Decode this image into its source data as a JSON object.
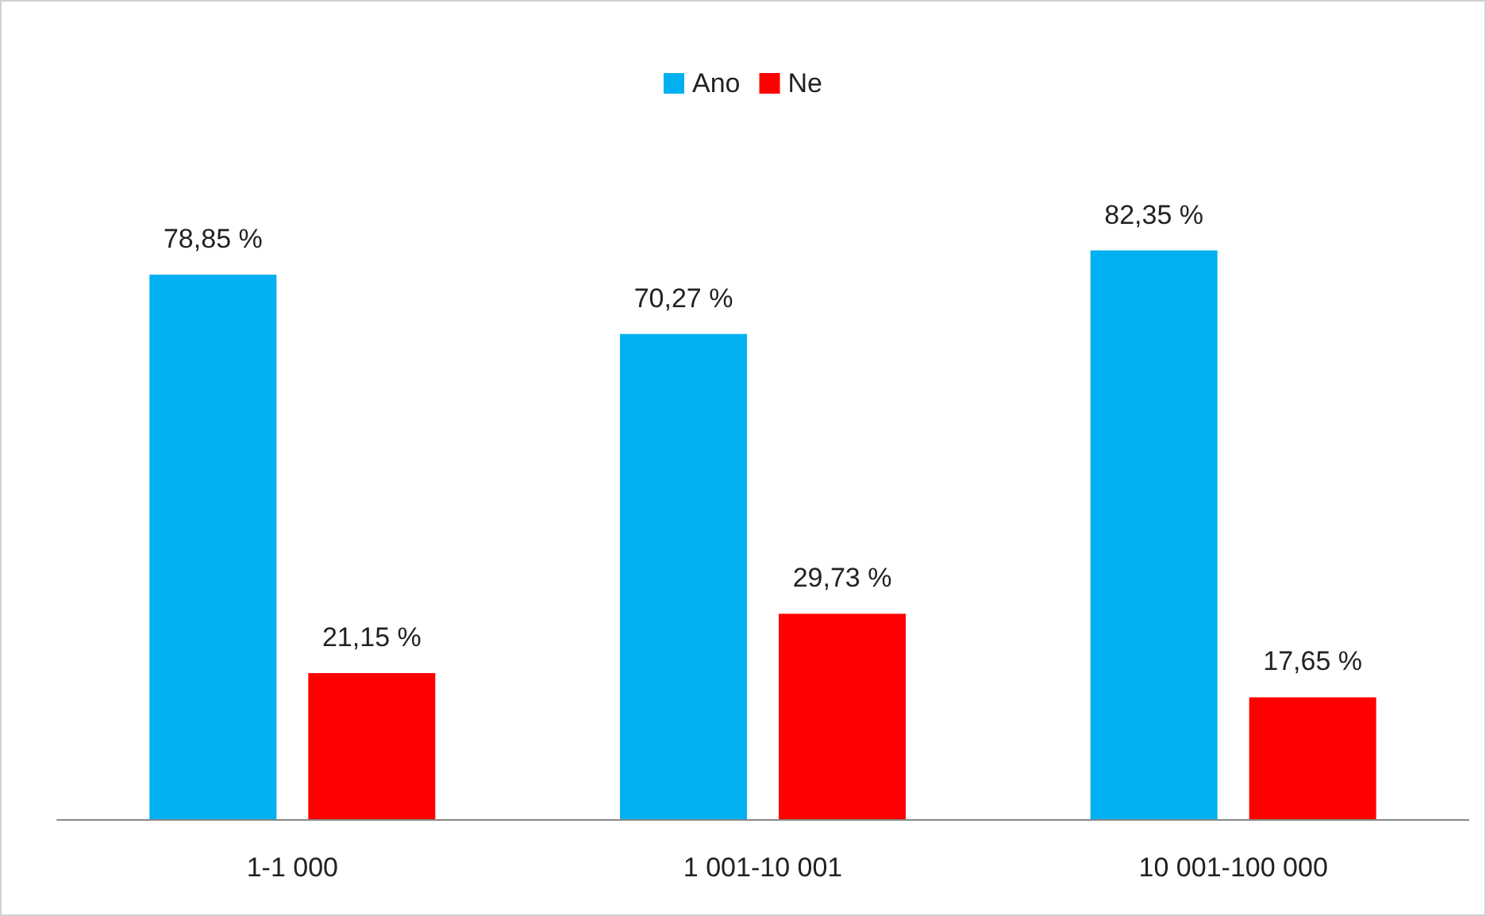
{
  "chart_data": {
    "type": "bar",
    "categories": [
      "1-1 000",
      "1 001-10 001",
      "10 001-100 000"
    ],
    "series": [
      {
        "name": "Ano",
        "color": "#00b0f0",
        "values": [
          78.85,
          70.27,
          82.35
        ],
        "value_labels": [
          "78,85 %",
          "70,27 %",
          "82,35 %"
        ]
      },
      {
        "name": "Ne",
        "color": "#ff0000",
        "values": [
          21.15,
          29.73,
          17.65
        ],
        "value_labels": [
          "21,15 %",
          "29,73 %",
          "17,65 %"
        ]
      }
    ],
    "legend": "top"
  }
}
